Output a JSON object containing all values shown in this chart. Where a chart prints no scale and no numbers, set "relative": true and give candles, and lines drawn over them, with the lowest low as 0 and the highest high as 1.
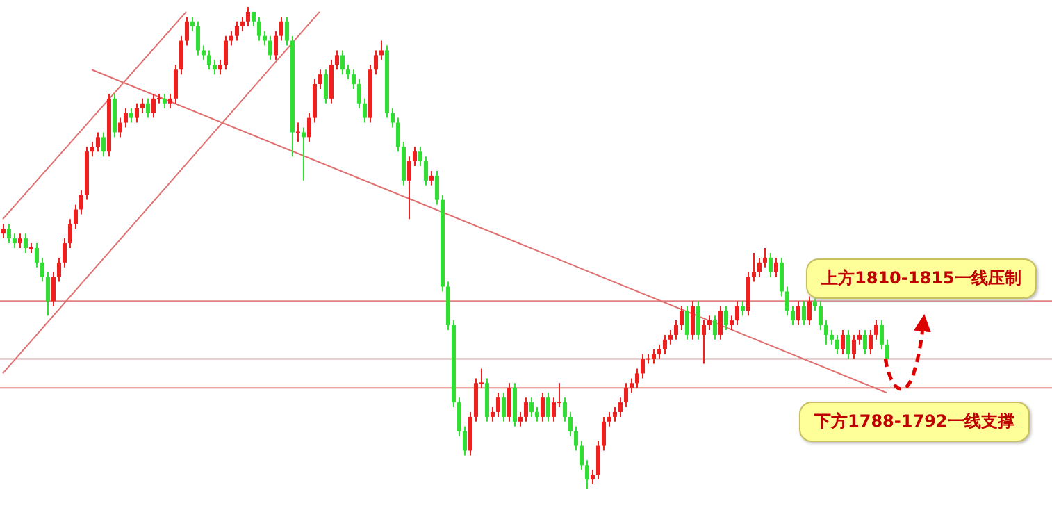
{
  "chart_data": {
    "type": "candlestick",
    "relative": true,
    "tick_labels": false,
    "categories": [
      null,
      null,
      null,
      null,
      null,
      null,
      null,
      null,
      null,
      null,
      null,
      null,
      null,
      null,
      null,
      null,
      null,
      null,
      null,
      null,
      null,
      null,
      null,
      null,
      null,
      null,
      null,
      null,
      null,
      null,
      null,
      null,
      null,
      null,
      null,
      null,
      null,
      null,
      null,
      null,
      null,
      null,
      null,
      null,
      null,
      null,
      null,
      null,
      null,
      null,
      null,
      null,
      null,
      null,
      null,
      null,
      null,
      null,
      null,
      null,
      null,
      null,
      null,
      null,
      null,
      null,
      null,
      null,
      null,
      null,
      null,
      null,
      null,
      null,
      null,
      null,
      null,
      null,
      null,
      null,
      null,
      null,
      null,
      null,
      null,
      null,
      null,
      null,
      null,
      null,
      null,
      null,
      null,
      null,
      null,
      null,
      null,
      null,
      null,
      null,
      null,
      null,
      null,
      null,
      null,
      null,
      null,
      null,
      null,
      null,
      null,
      null,
      null,
      null,
      null,
      null,
      null,
      null,
      null,
      null,
      null,
      null,
      null,
      null,
      null,
      null,
      null,
      null,
      null,
      null,
      null,
      null,
      null,
      null,
      null,
      null,
      null,
      null,
      null,
      null,
      null,
      null,
      null,
      null,
      null,
      null,
      null,
      null,
      null,
      null,
      null,
      null,
      null,
      null,
      null,
      null,
      null,
      null,
      null,
      null
    ],
    "ohlc": [
      [
        0.53,
        0.55,
        0.52,
        0.54
      ],
      [
        0.54,
        0.55,
        0.51,
        0.52
      ],
      [
        0.52,
        0.53,
        0.5,
        0.51
      ],
      [
        0.51,
        0.53,
        0.5,
        0.52
      ],
      [
        0.52,
        0.53,
        0.49,
        0.5
      ],
      [
        0.5,
        0.51,
        0.49,
        0.5
      ],
      [
        0.5,
        0.51,
        0.46,
        0.47
      ],
      [
        0.47,
        0.48,
        0.43,
        0.44
      ],
      [
        0.44,
        0.45,
        0.36,
        0.39
      ],
      [
        0.39,
        0.45,
        0.38,
        0.44
      ],
      [
        0.44,
        0.48,
        0.43,
        0.47
      ],
      [
        0.47,
        0.52,
        0.46,
        0.51
      ],
      [
        0.51,
        0.56,
        0.5,
        0.55
      ],
      [
        0.55,
        0.59,
        0.54,
        0.58
      ],
      [
        0.58,
        0.62,
        0.57,
        0.61
      ],
      [
        0.61,
        0.71,
        0.6,
        0.7
      ],
      [
        0.7,
        0.72,
        0.69,
        0.71
      ],
      [
        0.71,
        0.74,
        0.7,
        0.73
      ],
      [
        0.73,
        0.74,
        0.69,
        0.7
      ],
      [
        0.7,
        0.82,
        0.69,
        0.81
      ],
      [
        0.81,
        0.82,
        0.73,
        0.74
      ],
      [
        0.74,
        0.77,
        0.73,
        0.76
      ],
      [
        0.76,
        0.79,
        0.75,
        0.78
      ],
      [
        0.78,
        0.79,
        0.76,
        0.77
      ],
      [
        0.77,
        0.8,
        0.76,
        0.79
      ],
      [
        0.79,
        0.81,
        0.78,
        0.8
      ],
      [
        0.8,
        0.81,
        0.77,
        0.78
      ],
      [
        0.78,
        0.82,
        0.77,
        0.81
      ],
      [
        0.81,
        0.82,
        0.8,
        0.81
      ],
      [
        0.81,
        0.82,
        0.79,
        0.8
      ],
      [
        0.8,
        0.82,
        0.79,
        0.81
      ],
      [
        0.81,
        0.88,
        0.8,
        0.87
      ],
      [
        0.87,
        0.94,
        0.86,
        0.93
      ],
      [
        0.93,
        0.98,
        0.92,
        0.97
      ],
      [
        0.97,
        0.98,
        0.95,
        0.96
      ],
      [
        0.96,
        0.97,
        0.9,
        0.91
      ],
      [
        0.91,
        0.92,
        0.89,
        0.9
      ],
      [
        0.9,
        0.91,
        0.87,
        0.88
      ],
      [
        0.88,
        0.89,
        0.86,
        0.87
      ],
      [
        0.87,
        0.89,
        0.86,
        0.88
      ],
      [
        0.88,
        0.94,
        0.87,
        0.93
      ],
      [
        0.93,
        0.95,
        0.92,
        0.94
      ],
      [
        0.94,
        0.97,
        0.93,
        0.96
      ],
      [
        0.96,
        0.98,
        0.95,
        0.97
      ],
      [
        0.97,
        1,
        0.96,
        0.99
      ],
      [
        0.99,
        0.99,
        0.96,
        0.97
      ],
      [
        0.97,
        0.98,
        0.93,
        0.94
      ],
      [
        0.94,
        0.95,
        0.92,
        0.93
      ],
      [
        0.93,
        0.94,
        0.89,
        0.9
      ],
      [
        0.9,
        0.95,
        0.89,
        0.94
      ],
      [
        0.94,
        0.98,
        0.93,
        0.97
      ],
      [
        0.97,
        0.98,
        0.92,
        0.93
      ],
      [
        0.93,
        0.94,
        0.69,
        0.74
      ],
      [
        0.74,
        0.76,
        0.72,
        0.74
      ],
      [
        0.74,
        0.75,
        0.64,
        0.73
      ],
      [
        0.73,
        0.78,
        0.72,
        0.77
      ],
      [
        0.77,
        0.85,
        0.76,
        0.84
      ],
      [
        0.84,
        0.87,
        0.83,
        0.86
      ],
      [
        0.86,
        0.87,
        0.8,
        0.81
      ],
      [
        0.81,
        0.89,
        0.8,
        0.88
      ],
      [
        0.88,
        0.91,
        0.87,
        0.9
      ],
      [
        0.9,
        0.91,
        0.86,
        0.87
      ],
      [
        0.87,
        0.88,
        0.85,
        0.86
      ],
      [
        0.86,
        0.87,
        0.83,
        0.84
      ],
      [
        0.84,
        0.85,
        0.79,
        0.8
      ],
      [
        0.8,
        0.81,
        0.76,
        0.77
      ],
      [
        0.77,
        0.88,
        0.76,
        0.87
      ],
      [
        0.87,
        0.91,
        0.86,
        0.9
      ],
      [
        0.9,
        0.93,
        0.89,
        0.91
      ],
      [
        0.91,
        0.92,
        0.77,
        0.78
      ],
      [
        0.78,
        0.79,
        0.75,
        0.76
      ],
      [
        0.76,
        0.77,
        0.7,
        0.71
      ],
      [
        0.71,
        0.72,
        0.63,
        0.64
      ],
      [
        0.64,
        0.69,
        0.56,
        0.68
      ],
      [
        0.68,
        0.71,
        0.67,
        0.7
      ],
      [
        0.7,
        0.71,
        0.67,
        0.68
      ],
      [
        0.68,
        0.69,
        0.63,
        0.64
      ],
      [
        0.64,
        0.66,
        0.63,
        0.65
      ],
      [
        0.65,
        0.66,
        0.59,
        0.6
      ],
      [
        0.6,
        0.61,
        0.41,
        0.42
      ],
      [
        0.42,
        0.43,
        0.33,
        0.34
      ],
      [
        0.34,
        0.35,
        0.17,
        0.18
      ],
      [
        0.18,
        0.19,
        0.11,
        0.12
      ],
      [
        0.12,
        0.13,
        0.07,
        0.08
      ],
      [
        0.08,
        0.16,
        0.07,
        0.15
      ],
      [
        0.15,
        0.23,
        0.14,
        0.22
      ],
      [
        0.22,
        0.25,
        0.21,
        0.22
      ],
      [
        0.22,
        0.23,
        0.14,
        0.15
      ],
      [
        0.15,
        0.17,
        0.14,
        0.16
      ],
      [
        0.16,
        0.2,
        0.15,
        0.19
      ],
      [
        0.19,
        0.2,
        0.14,
        0.15
      ],
      [
        0.15,
        0.22,
        0.14,
        0.21
      ],
      [
        0.21,
        0.22,
        0.13,
        0.14
      ],
      [
        0.14,
        0.16,
        0.13,
        0.15
      ],
      [
        0.15,
        0.19,
        0.14,
        0.18
      ],
      [
        0.18,
        0.19,
        0.15,
        0.16
      ],
      [
        0.16,
        0.17,
        0.14,
        0.15
      ],
      [
        0.15,
        0.2,
        0.14,
        0.19
      ],
      [
        0.19,
        0.2,
        0.14,
        0.15
      ],
      [
        0.15,
        0.19,
        0.14,
        0.18
      ],
      [
        0.18,
        0.22,
        0.17,
        0.18
      ],
      [
        0.18,
        0.19,
        0.14,
        0.15
      ],
      [
        0.15,
        0.16,
        0.11,
        0.12
      ],
      [
        0.12,
        0.13,
        0.08,
        0.09
      ],
      [
        0.09,
        0.1,
        0.04,
        0.05
      ],
      [
        0.05,
        0.06,
        0,
        0.02
      ],
      [
        0.02,
        0.04,
        0.01,
        0.03
      ],
      [
        0.03,
        0.1,
        0.02,
        0.09
      ],
      [
        0.09,
        0.15,
        0.08,
        0.14
      ],
      [
        0.14,
        0.16,
        0.13,
        0.15
      ],
      [
        0.15,
        0.17,
        0.14,
        0.16
      ],
      [
        0.16,
        0.19,
        0.15,
        0.18
      ],
      [
        0.18,
        0.22,
        0.17,
        0.21
      ],
      [
        0.21,
        0.23,
        0.2,
        0.22
      ],
      [
        0.22,
        0.25,
        0.21,
        0.24
      ],
      [
        0.24,
        0.28,
        0.23,
        0.27
      ],
      [
        0.27,
        0.28,
        0.26,
        0.27
      ],
      [
        0.27,
        0.29,
        0.26,
        0.28
      ],
      [
        0.28,
        0.3,
        0.27,
        0.29
      ],
      [
        0.29,
        0.32,
        0.28,
        0.31
      ],
      [
        0.31,
        0.33,
        0.3,
        0.32
      ],
      [
        0.32,
        0.35,
        0.31,
        0.34
      ],
      [
        0.34,
        0.38,
        0.33,
        0.37
      ],
      [
        0.37,
        0.38,
        0.31,
        0.32
      ],
      [
        0.32,
        0.39,
        0.31,
        0.38
      ],
      [
        0.38,
        0.39,
        0.31,
        0.32
      ],
      [
        0.32,
        0.35,
        0.26,
        0.34
      ],
      [
        0.34,
        0.36,
        0.33,
        0.35
      ],
      [
        0.35,
        0.36,
        0.31,
        0.32
      ],
      [
        0.32,
        0.38,
        0.31,
        0.37
      ],
      [
        0.37,
        0.38,
        0.33,
        0.34
      ],
      [
        0.34,
        0.36,
        0.33,
        0.35
      ],
      [
        0.35,
        0.39,
        0.34,
        0.38
      ],
      [
        0.38,
        0.39,
        0.36,
        0.37
      ],
      [
        0.37,
        0.45,
        0.36,
        0.44
      ],
      [
        0.44,
        0.49,
        0.43,
        0.45
      ],
      [
        0.45,
        0.48,
        0.44,
        0.47
      ],
      [
        0.47,
        0.5,
        0.46,
        0.48
      ],
      [
        0.48,
        0.49,
        0.44,
        0.45
      ],
      [
        0.45,
        0.48,
        0.44,
        0.47
      ],
      [
        0.47,
        0.48,
        0.4,
        0.41
      ],
      [
        0.41,
        0.42,
        0.36,
        0.37
      ],
      [
        0.37,
        0.38,
        0.34,
        0.35
      ],
      [
        0.35,
        0.39,
        0.34,
        0.38
      ],
      [
        0.38,
        0.39,
        0.34,
        0.35
      ],
      [
        0.35,
        0.4,
        0.34,
        0.39
      ],
      [
        0.39,
        0.4,
        0.37,
        0.38
      ],
      [
        0.38,
        0.39,
        0.33,
        0.34
      ],
      [
        0.34,
        0.35,
        0.3,
        0.32
      ],
      [
        0.32,
        0.33,
        0.3,
        0.31
      ],
      [
        0.31,
        0.32,
        0.28,
        0.29
      ],
      [
        0.29,
        0.33,
        0.28,
        0.32
      ],
      [
        0.32,
        0.33,
        0.27,
        0.28
      ],
      [
        0.28,
        0.32,
        0.27,
        0.31
      ],
      [
        0.31,
        0.33,
        0.3,
        0.32
      ],
      [
        0.32,
        0.33,
        0.28,
        0.29
      ],
      [
        0.29,
        0.33,
        0.28,
        0.32
      ],
      [
        0.32,
        0.35,
        0.31,
        0.34
      ],
      [
        0.34,
        0.35,
        0.29,
        0.3
      ],
      [
        0.3,
        0.31,
        0.26,
        0.27
      ]
    ],
    "series": [
      {
        "type": "line",
        "color": "#e07070",
        "values": [
          0.56,
          null,
          null,
          null,
          null,
          null,
          null,
          null,
          null,
          null,
          null,
          null,
          null,
          null,
          null,
          null,
          null,
          null,
          null,
          null,
          null,
          null,
          null,
          null,
          null,
          null,
          null,
          null,
          null,
          null,
          null,
          null,
          null,
          0.99,
          null,
          null,
          null,
          null,
          null,
          null,
          null,
          null,
          null,
          null,
          null,
          null,
          null,
          null,
          null,
          null,
          null,
          null,
          null,
          null,
          null,
          null,
          null,
          null,
          null,
          null,
          null,
          null,
          null,
          null,
          null,
          null,
          null,
          null,
          null,
          null,
          null,
          null,
          null,
          null,
          null,
          null,
          null,
          null,
          null,
          null,
          null,
          null,
          null,
          null,
          null,
          null,
          null,
          null,
          null,
          null,
          null,
          null,
          null,
          null,
          null,
          null,
          null,
          null,
          null,
          null,
          null,
          null,
          null,
          null,
          null,
          null,
          null,
          null,
          null,
          null,
          null,
          null,
          null,
          null,
          null,
          null,
          null,
          null,
          null,
          null,
          null,
          null,
          null,
          null,
          null,
          null,
          null,
          null,
          null,
          null,
          null,
          null,
          null,
          null,
          null,
          null,
          null,
          null,
          null,
          null,
          null,
          null,
          null,
          null,
          null,
          null,
          null,
          null,
          null,
          null,
          null,
          null,
          null,
          null,
          null,
          null,
          null,
          null,
          null,
          null
        ]
      },
      {
        "type": "line",
        "color": "#e07070",
        "values": [
          0.24,
          null,
          null,
          null,
          null,
          null,
          null,
          null,
          null,
          null,
          null,
          null,
          null,
          null,
          null,
          null,
          null,
          null,
          null,
          null,
          null,
          null,
          null,
          null,
          null,
          null,
          null,
          null,
          null,
          null,
          null,
          null,
          null,
          null,
          null,
          null,
          null,
          null,
          null,
          null,
          null,
          null,
          null,
          null,
          null,
          null,
          null,
          null,
          null,
          null,
          null,
          null,
          null,
          null,
          null,
          null,
          null,
          0.99,
          null,
          null,
          null,
          null,
          null,
          null,
          null,
          null,
          null,
          null,
          null,
          null,
          null,
          null,
          null,
          null,
          null,
          null,
          null,
          null,
          null,
          null,
          null,
          null,
          null,
          null,
          null,
          null,
          null,
          null,
          null,
          null,
          null,
          null,
          null,
          null,
          null,
          null,
          null,
          null,
          null,
          null,
          null,
          null,
          null,
          null,
          null,
          null,
          null,
          null,
          null,
          null,
          null,
          null,
          null,
          null,
          null,
          null,
          null,
          null,
          null,
          null,
          null,
          null,
          null,
          null,
          null,
          null,
          null,
          null,
          null,
          null,
          null,
          null,
          null,
          null,
          null,
          null,
          null,
          null,
          null,
          null,
          null,
          null,
          null,
          null,
          null,
          null,
          null,
          null,
          null,
          null,
          null,
          null,
          null,
          null,
          null,
          null,
          null,
          null,
          null,
          null
        ]
      },
      {
        "type": "line",
        "color": "#e07070",
        "values": [
          null,
          null,
          null,
          null,
          null,
          null,
          null,
          null,
          null,
          null,
          null,
          null,
          null,
          null,
          null,
          null,
          0.87,
          null,
          null,
          null,
          null,
          null,
          null,
          null,
          null,
          null,
          null,
          null,
          null,
          null,
          null,
          null,
          null,
          null,
          null,
          null,
          null,
          null,
          null,
          null,
          null,
          null,
          null,
          null,
          null,
          null,
          null,
          null,
          null,
          null,
          null,
          null,
          null,
          null,
          null,
          null,
          null,
          null,
          null,
          null,
          null,
          null,
          null,
          null,
          null,
          null,
          null,
          null,
          null,
          null,
          null,
          null,
          null,
          null,
          null,
          null,
          null,
          null,
          null,
          null,
          null,
          null,
          null,
          null,
          null,
          null,
          null,
          null,
          null,
          null,
          null,
          null,
          null,
          null,
          null,
          null,
          null,
          null,
          null,
          null,
          null,
          null,
          null,
          null,
          null,
          null,
          null,
          null,
          null,
          null,
          null,
          null,
          null,
          null,
          null,
          null,
          null,
          null,
          null,
          null,
          null,
          null,
          null,
          null,
          null,
          null,
          null,
          null,
          null,
          null,
          null,
          null,
          null,
          null,
          null,
          null,
          null,
          null,
          null,
          null,
          null,
          null,
          null,
          null,
          null,
          null,
          null,
          null,
          null,
          null,
          null,
          null,
          null,
          null,
          null,
          null,
          null,
          null,
          null,
          0.2
        ]
      }
    ],
    "ref_lines": [
      {
        "axis": "y",
        "value": 0.39,
        "color": "#e08080"
      },
      {
        "axis": "y",
        "value": 0.27,
        "color": "#c8a8a8"
      },
      {
        "axis": "y",
        "value": 0.21,
        "color": "#e08080"
      }
    ],
    "annotations": [
      "上方1810-1815一线压制",
      "下方1788-1792一线支撑"
    ]
  }
}
